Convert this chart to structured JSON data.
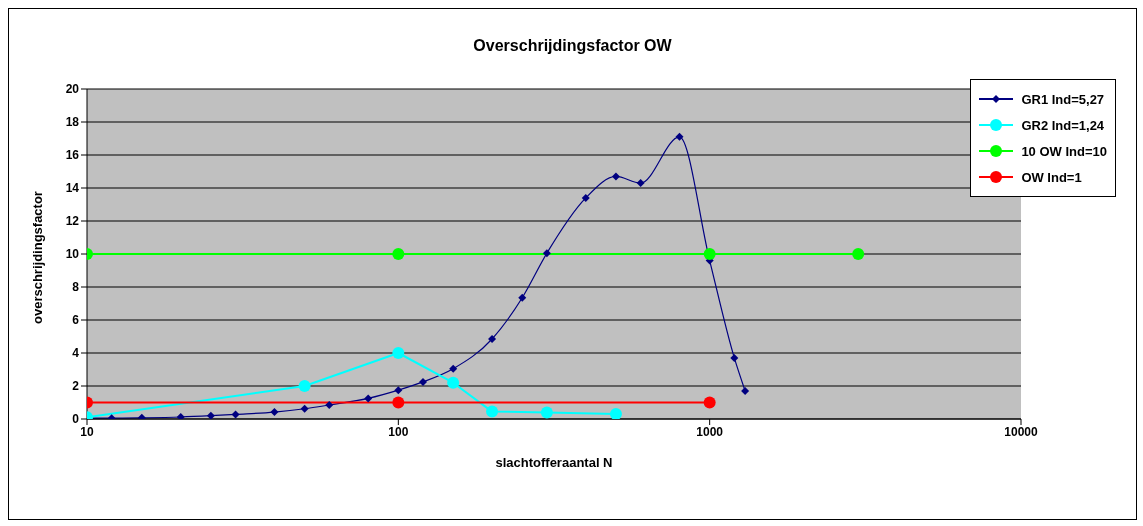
{
  "chart_data": {
    "type": "line",
    "title": "Overschrijdingsfactor OW",
    "xlabel": "slachtofferaantal N",
    "ylabel": "overschrijdingsfactor",
    "log": "x",
    "grid": "y",
    "legend": "top right",
    "xlim": [
      10,
      10000
    ],
    "xticks": [
      10,
      100,
      1000,
      10000
    ],
    "ylim": [
      0,
      20
    ],
    "yticks": [
      0,
      2,
      4,
      6,
      8,
      10,
      12,
      14,
      16,
      18,
      20
    ],
    "series": [
      {
        "name": "GR1 Ind=5,27",
        "color": "#000080",
        "marker": "diamond",
        "x": [
          10,
          12,
          15,
          20,
          25,
          30,
          40,
          50,
          60,
          80,
          100,
          120,
          150,
          200,
          250,
          300,
          400,
          500,
          600,
          800,
          1000,
          1200,
          1300
        ],
        "values": [
          0.05,
          0.05,
          0.07,
          0.12,
          0.2,
          0.28,
          0.42,
          0.62,
          0.85,
          1.25,
          1.75,
          2.25,
          3.05,
          4.85,
          7.35,
          10.05,
          13.4,
          14.7,
          14.3,
          17.1,
          9.6,
          3.7,
          1.7
        ]
      },
      {
        "name": "GR2 Ind=1,24",
        "color": "#00ffff",
        "marker": "circle",
        "x": [
          10,
          50,
          100,
          150,
          200,
          300,
          500
        ],
        "values": [
          0.1,
          2,
          4,
          2.2,
          0.45,
          0.4,
          0.3
        ]
      },
      {
        "name": "10 OW Ind=10",
        "color": "#00ff00",
        "marker": "circle",
        "x": [
          10,
          100,
          1000,
          3000
        ],
        "values": [
          10,
          10,
          10,
          10
        ]
      },
      {
        "name": "OW Ind=1",
        "color": "#ff0000",
        "marker": "circle",
        "x": [
          10,
          100,
          1000
        ],
        "values": [
          1,
          1,
          1
        ]
      }
    ]
  }
}
